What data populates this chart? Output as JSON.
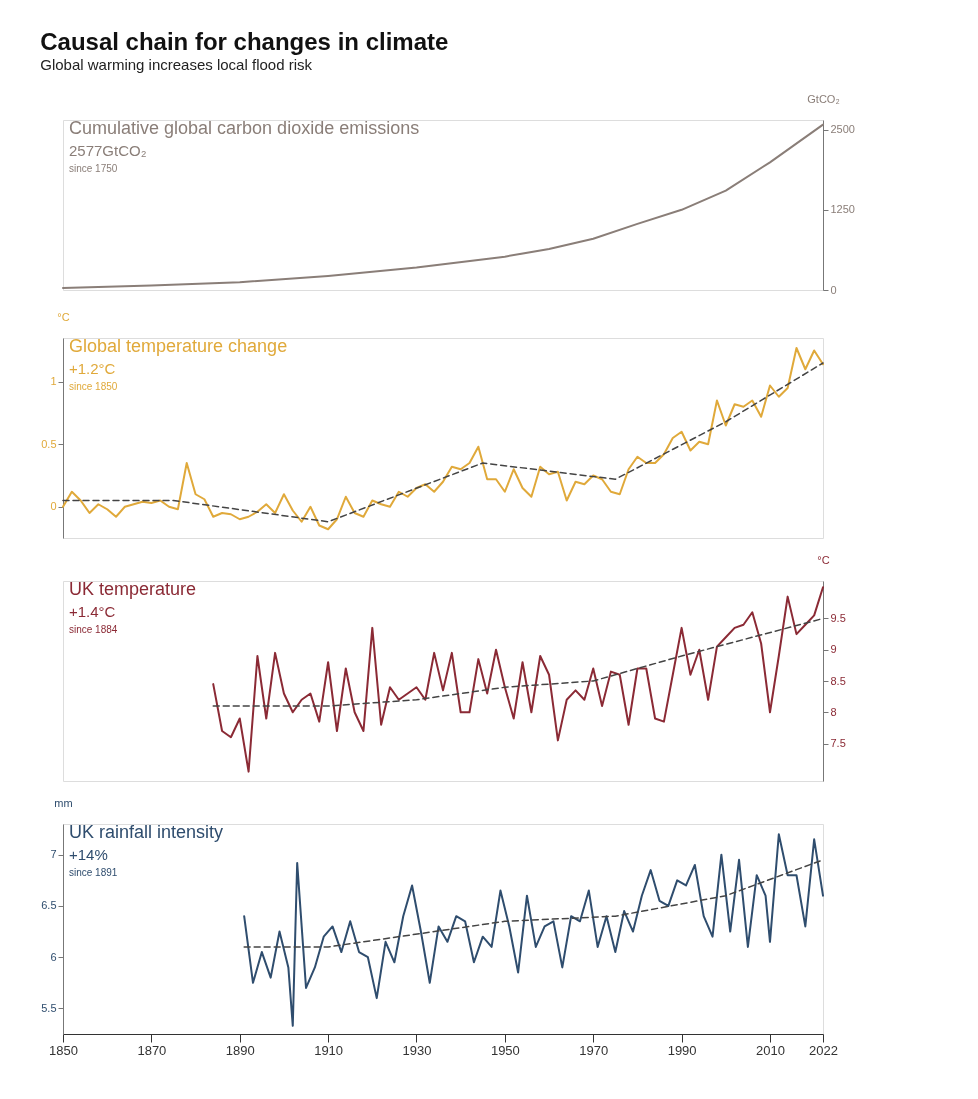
{
  "chart_data": [
    {
      "type": "line",
      "title": "Causal chain for changes in climate",
      "subtitle": "Global warming increases local flood risk",
      "y2label": "GtCO₂",
      "xlim": [
        1850,
        2022
      ],
      "y2lim": [
        0,
        2650
      ],
      "y2ticks": [
        0,
        1250,
        2500
      ],
      "tick_labels": "y",
      "grid": false,
      "annotations": [
        "2577GtCO₂",
        "since 1750"
      ],
      "series": [
        {
          "name": "Cumulative global carbon dioxide emissions",
          "color": "#8a7e78",
          "axis": "y2",
          "line_style": "solid",
          "x": [
            1850,
            1870,
            1890,
            1910,
            1930,
            1950,
            1960,
            1970,
            1980,
            1990,
            2000,
            2010,
            2022
          ],
          "values": [
            30,
            70,
            120,
            220,
            350,
            520,
            640,
            800,
            1030,
            1250,
            1550,
            1990,
            2577
          ]
        }
      ]
    },
    {
      "type": "line",
      "ylabel": "°C",
      "xlim": [
        1850,
        2022
      ],
      "ylim": [
        -0.25,
        1.35
      ],
      "yticks": [
        0,
        0.5,
        1
      ],
      "tick_labels": "y",
      "grid": false,
      "annotations": [
        "+1.2°C",
        "since 1850"
      ],
      "series": [
        {
          "name": "Global temperature change",
          "color": "#e0a93a",
          "line_style": "solid",
          "x": [
            1850,
            1852,
            1854,
            1856,
            1858,
            1860,
            1862,
            1864,
            1866,
            1868,
            1870,
            1872,
            1874,
            1876,
            1878,
            1880,
            1882,
            1884,
            1886,
            1888,
            1890,
            1892,
            1894,
            1896,
            1898,
            1900,
            1902,
            1904,
            1906,
            1908,
            1910,
            1912,
            1914,
            1916,
            1918,
            1920,
            1922,
            1924,
            1926,
            1928,
            1930,
            1932,
            1934,
            1936,
            1938,
            1940,
            1942,
            1944,
            1946,
            1948,
            1950,
            1952,
            1954,
            1956,
            1958,
            1960,
            1962,
            1964,
            1966,
            1968,
            1970,
            1972,
            1974,
            1976,
            1978,
            1980,
            1982,
            1984,
            1986,
            1988,
            1990,
            1992,
            1994,
            1996,
            1998,
            2000,
            2002,
            2004,
            2006,
            2008,
            2010,
            2012,
            2014,
            2016,
            2018,
            2020,
            2022
          ],
          "values": [
            0.0,
            0.12,
            0.05,
            -0.05,
            0.02,
            -0.02,
            -0.08,
            0.0,
            0.02,
            0.04,
            0.03,
            0.05,
            0.0,
            -0.02,
            0.35,
            0.1,
            0.06,
            -0.08,
            -0.05,
            -0.06,
            -0.1,
            -0.08,
            -0.04,
            0.02,
            -0.05,
            0.1,
            -0.03,
            -0.12,
            0.0,
            -0.15,
            -0.18,
            -0.1,
            0.08,
            -0.05,
            -0.08,
            0.05,
            0.02,
            0.0,
            0.12,
            0.08,
            0.15,
            0.18,
            0.12,
            0.2,
            0.32,
            0.3,
            0.35,
            0.48,
            0.22,
            0.22,
            0.12,
            0.3,
            0.15,
            0.08,
            0.32,
            0.26,
            0.28,
            0.05,
            0.2,
            0.18,
            0.25,
            0.22,
            0.12,
            0.1,
            0.3,
            0.4,
            0.35,
            0.35,
            0.42,
            0.55,
            0.6,
            0.45,
            0.52,
            0.5,
            0.85,
            0.65,
            0.82,
            0.8,
            0.85,
            0.72,
            0.97,
            0.88,
            0.95,
            1.27,
            1.1,
            1.25,
            1.14
          ]
        },
        {
          "color": "#444444",
          "line_style": "dashed",
          "x": [
            1850,
            1875,
            1910,
            1945,
            1975,
            2000,
            2022
          ],
          "values": [
            0.05,
            0.05,
            -0.12,
            0.35,
            0.22,
            0.68,
            1.15
          ]
        }
      ]
    },
    {
      "type": "line",
      "y2label": "°C",
      "xlim": [
        1850,
        2022
      ],
      "y2lim": [
        6.9,
        10.1
      ],
      "y2ticks": [
        7.5,
        8,
        8.5,
        9,
        9.5
      ],
      "tick_labels": "y",
      "grid": false,
      "annotations": [
        "+1.4°C",
        "since 1884"
      ],
      "series": [
        {
          "name": "UK temperature",
          "color": "#8b2a35",
          "axis": "y2",
          "line_style": "solid",
          "x": [
            1884,
            1886,
            1888,
            1890,
            1892,
            1894,
            1896,
            1898,
            1900,
            1902,
            1904,
            1906,
            1908,
            1910,
            1912,
            1914,
            1916,
            1918,
            1920,
            1922,
            1924,
            1926,
            1928,
            1930,
            1932,
            1934,
            1936,
            1938,
            1940,
            1942,
            1944,
            1946,
            1948,
            1950,
            1952,
            1954,
            1956,
            1958,
            1960,
            1962,
            1964,
            1966,
            1968,
            1970,
            1972,
            1974,
            1976,
            1978,
            1980,
            1982,
            1984,
            1986,
            1988,
            1990,
            1992,
            1994,
            1996,
            1998,
            2000,
            2002,
            2004,
            2006,
            2008,
            2010,
            2012,
            2014,
            2016,
            2018,
            2020,
            2022
          ],
          "values": [
            8.45,
            7.7,
            7.6,
            7.9,
            7.05,
            8.9,
            7.9,
            8.95,
            8.3,
            8.0,
            8.2,
            8.3,
            7.85,
            8.8,
            7.7,
            8.7,
            8.0,
            7.7,
            9.35,
            7.8,
            8.4,
            8.2,
            8.3,
            8.4,
            8.2,
            8.95,
            8.35,
            8.95,
            8.0,
            8.0,
            8.85,
            8.3,
            9.0,
            8.4,
            7.9,
            8.8,
            8.0,
            8.9,
            8.6,
            7.55,
            8.2,
            8.35,
            8.2,
            8.7,
            8.1,
            8.65,
            8.6,
            7.8,
            8.7,
            8.7,
            7.9,
            7.85,
            8.6,
            9.35,
            8.6,
            9.0,
            8.2,
            9.05,
            9.2,
            9.35,
            9.4,
            9.6,
            9.1,
            8.0,
            8.9,
            9.85,
            9.25,
            9.4,
            9.55,
            10.0
          ]
        },
        {
          "color": "#444444",
          "axis": "y2",
          "line_style": "dashed",
          "x": [
            1884,
            1910,
            1930,
            1950,
            1970,
            1990,
            2022
          ],
          "values": [
            8.1,
            8.1,
            8.2,
            8.4,
            8.5,
            8.9,
            9.5
          ]
        }
      ]
    },
    {
      "type": "line",
      "ylabel": "mm",
      "xlim": [
        1850,
        2022
      ],
      "ylim": [
        5.25,
        7.3
      ],
      "yticks": [
        5.5,
        6,
        6.5,
        7
      ],
      "xticks": [
        1850,
        1870,
        1890,
        1910,
        1930,
        1950,
        1970,
        1990,
        2010,
        2022
      ],
      "grid": false,
      "annotations": [
        "+14%",
        "since 1891"
      ],
      "series": [
        {
          "name": "UK rainfall intensity",
          "color": "#2f4d6e",
          "line_style": "solid",
          "x": [
            1891,
            1893,
            1895,
            1897,
            1899,
            1901,
            1902,
            1903,
            1905,
            1907,
            1909,
            1911,
            1913,
            1915,
            1917,
            1919,
            1921,
            1923,
            1925,
            1927,
            1929,
            1931,
            1933,
            1935,
            1937,
            1939,
            1941,
            1943,
            1945,
            1947,
            1949,
            1951,
            1953,
            1955,
            1957,
            1959,
            1961,
            1963,
            1965,
            1967,
            1969,
            1971,
            1973,
            1975,
            1977,
            1979,
            1981,
            1983,
            1985,
            1987,
            1989,
            1991,
            1993,
            1995,
            1997,
            1999,
            2001,
            2003,
            2005,
            2007,
            2009,
            2010,
            2012,
            2014,
            2016,
            2018,
            2020,
            2022
          ],
          "values": [
            6.4,
            5.75,
            6.05,
            5.8,
            6.25,
            5.9,
            5.33,
            6.92,
            5.7,
            5.9,
            6.2,
            6.3,
            6.05,
            6.35,
            6.05,
            6.0,
            5.6,
            6.15,
            5.95,
            6.4,
            6.7,
            6.25,
            5.75,
            6.3,
            6.15,
            6.4,
            6.35,
            5.95,
            6.2,
            6.1,
            6.65,
            6.3,
            5.85,
            6.6,
            6.1,
            6.3,
            6.35,
            5.9,
            6.4,
            6.35,
            6.65,
            6.1,
            6.4,
            6.05,
            6.45,
            6.25,
            6.6,
            6.85,
            6.55,
            6.5,
            6.75,
            6.7,
            6.9,
            6.4,
            6.2,
            7.0,
            6.25,
            6.95,
            6.1,
            6.8,
            6.6,
            6.15,
            7.2,
            6.8,
            6.8,
            6.3,
            7.15,
            6.6
          ]
        },
        {
          "color": "#444444",
          "line_style": "dashed",
          "x": [
            1891,
            1910,
            1950,
            1975,
            2000,
            2022
          ],
          "values": [
            6.1,
            6.1,
            6.35,
            6.4,
            6.6,
            6.95
          ]
        }
      ]
    }
  ]
}
